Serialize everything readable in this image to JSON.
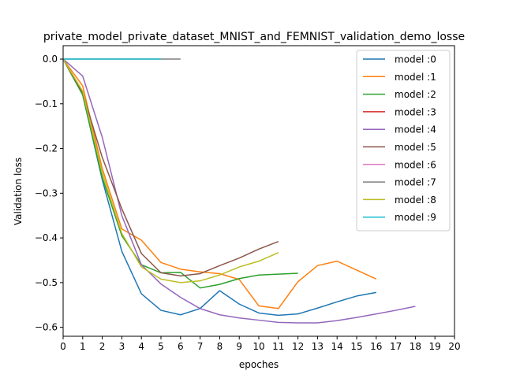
{
  "chart_data": {
    "type": "line",
    "title": "private_model_private_dataset_MNIST_and_FEMNIST_validation_demo_losse",
    "xlabel": "epoches",
    "ylabel": "Validation loss",
    "xlim": [
      0,
      20
    ],
    "ylim": [
      -0.62,
      0.03
    ],
    "x_ticks": [
      "0",
      "1",
      "2",
      "3",
      "4",
      "5",
      "6",
      "7",
      "8",
      "9",
      "10",
      "11",
      "12",
      "13",
      "14",
      "15",
      "16",
      "17",
      "18",
      "19",
      "20"
    ],
    "y_ticks": [
      {
        "value": 0.0,
        "label": "0.0"
      },
      {
        "value": -0.1,
        "label": "−0.1"
      },
      {
        "value": -0.2,
        "label": "−0.2"
      },
      {
        "value": -0.3,
        "label": "−0.3"
      },
      {
        "value": -0.4,
        "label": "−0.4"
      },
      {
        "value": -0.5,
        "label": "−0.5"
      },
      {
        "value": -0.6,
        "label": "−0.6"
      }
    ],
    "grid": false,
    "legend_position": "top-right",
    "series": [
      {
        "name": "model :0",
        "color": "#1f77b4",
        "x": [
          0,
          1,
          2,
          3,
          4,
          5,
          6,
          7,
          8,
          9,
          10,
          11,
          12,
          13,
          14,
          15,
          16
        ],
        "y": [
          0,
          -0.08,
          -0.27,
          -0.43,
          -0.525,
          -0.562,
          -0.572,
          -0.558,
          -0.518,
          -0.548,
          -0.568,
          -0.573,
          -0.57,
          -0.557,
          -0.543,
          -0.53,
          -0.522
        ]
      },
      {
        "name": "model :1",
        "color": "#ff7f0e",
        "x": [
          0,
          1,
          2,
          3,
          4,
          5,
          6,
          7,
          8,
          9,
          10,
          11,
          12,
          13,
          14,
          15,
          16
        ],
        "y": [
          0,
          -0.06,
          -0.245,
          -0.38,
          -0.405,
          -0.455,
          -0.47,
          -0.476,
          -0.48,
          -0.493,
          -0.552,
          -0.558,
          -0.498,
          -0.462,
          -0.452,
          -0.472,
          -0.492
        ]
      },
      {
        "name": "model :2",
        "color": "#2ca02c",
        "x": [
          0,
          1,
          2,
          3,
          4,
          5,
          6,
          7,
          8,
          9,
          10,
          11,
          12
        ],
        "y": [
          0,
          -0.08,
          -0.265,
          -0.395,
          -0.46,
          -0.478,
          -0.477,
          -0.512,
          -0.504,
          -0.491,
          -0.483,
          -0.481,
          -0.479
        ]
      },
      {
        "name": "model :3",
        "color": "#d62728",
        "x": [],
        "y": []
      },
      {
        "name": "model :4",
        "color": "#9467bd",
        "x": [
          0,
          1,
          2,
          3,
          4,
          5,
          6,
          7,
          8,
          9,
          10,
          11,
          12,
          13,
          14,
          15,
          16,
          17,
          18
        ],
        "y": [
          0,
          -0.038,
          -0.175,
          -0.35,
          -0.46,
          -0.503,
          -0.533,
          -0.558,
          -0.572,
          -0.579,
          -0.584,
          -0.589,
          -0.59,
          -0.59,
          -0.585,
          -0.578,
          -0.57,
          -0.562,
          -0.553
        ]
      },
      {
        "name": "model :5",
        "color": "#8c564b",
        "x": [
          0,
          1,
          2,
          3,
          4,
          5,
          6,
          7,
          8,
          9,
          10,
          11
        ],
        "y": [
          0,
          -0.075,
          -0.22,
          -0.335,
          -0.435,
          -0.478,
          -0.485,
          -0.48,
          -0.462,
          -0.445,
          -0.425,
          -0.408
        ]
      },
      {
        "name": "model :6",
        "color": "#e377c2",
        "x": [],
        "y": []
      },
      {
        "name": "model :7",
        "color": "#7f7f7f",
        "x": [
          0,
          1,
          2,
          3,
          4,
          5,
          6
        ],
        "y": [
          0,
          0,
          0,
          0,
          0,
          0,
          0
        ]
      },
      {
        "name": "model :8",
        "color": "#bcbd22",
        "x": [
          0,
          1,
          2,
          3,
          4,
          5,
          6,
          7,
          8,
          9,
          10,
          11
        ],
        "y": [
          0,
          -0.072,
          -0.255,
          -0.39,
          -0.465,
          -0.492,
          -0.5,
          -0.496,
          -0.483,
          -0.465,
          -0.452,
          -0.433
        ]
      },
      {
        "name": "model :9",
        "color": "#17becf",
        "x": [
          0,
          1,
          2,
          3,
          4,
          5
        ],
        "y": [
          0,
          0,
          0,
          0,
          0,
          0
        ]
      }
    ]
  }
}
